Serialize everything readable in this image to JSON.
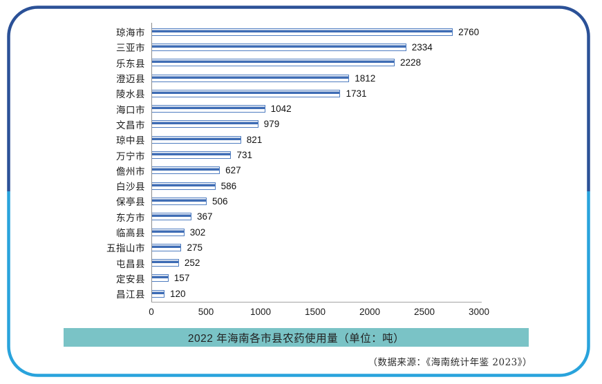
{
  "frame": {
    "top_border_color": "#2B5197",
    "bottom_border_color": "#29A3DC"
  },
  "chart_data": {
    "type": "bar",
    "orientation": "horizontal",
    "title": "2022 年海南各市县农药使用量（单位：吨）",
    "source_note": "（数据来源：《海南统计年鉴 2023》）",
    "categories": [
      "琼海市",
      "三亚市",
      "乐东县",
      "澄迈县",
      "陵水县",
      "海口市",
      "文昌市",
      "琼中县",
      "万宁市",
      "儋州市",
      "白沙县",
      "保亭县",
      "东方市",
      "临高县",
      "五指山市",
      "屯昌县",
      "定安县",
      "昌江县"
    ],
    "values": [
      2760,
      2334,
      2228,
      1812,
      1731,
      1042,
      979,
      821,
      731,
      627,
      586,
      506,
      367,
      302,
      275,
      252,
      157,
      120
    ],
    "x_ticks": [
      "0",
      "500",
      "1000",
      "1500",
      "2000",
      "2500",
      "3000"
    ],
    "xlim": [
      0,
      3000
    ],
    "grid": false,
    "legend": "none",
    "bar_stripe_color": "#3F6DB5",
    "bar_border_color": "#4E7CC0",
    "title_band_color": "#7AC3C6",
    "axis_line_color": "#8c8c8c"
  }
}
